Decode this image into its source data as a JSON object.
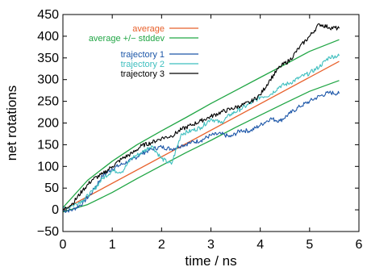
{
  "chart_data": {
    "type": "line",
    "title": "",
    "xlabel": "time / ns",
    "ylabel": "net rotations",
    "xlim": [
      0,
      6
    ],
    "ylim": [
      -50,
      450
    ],
    "x_ticks": [
      0,
      1,
      2,
      3,
      4,
      5,
      6
    ],
    "y_ticks": [
      -50,
      0,
      50,
      100,
      150,
      200,
      250,
      300,
      350,
      400,
      450
    ],
    "grid": false,
    "legend_position": "top-left",
    "series": [
      {
        "name": "average",
        "color": "#e8612c",
        "x": [
          0,
          5.6
        ],
        "y": [
          0,
          342
        ]
      },
      {
        "name": "average +/− stddev",
        "color": "#21a645",
        "x": [
          0,
          0.5,
          1,
          1.5,
          2,
          2.5,
          3,
          3.5,
          4,
          4.5,
          5,
          5.6
        ],
        "y": [
          5,
          68,
          112,
          150,
          182,
          213,
          245,
          275,
          305,
          335,
          365,
          392
        ]
      },
      {
        "name": "",
        "color": "#21a645",
        "x": [
          0,
          0.5,
          1,
          1.5,
          2,
          2.5,
          3,
          3.5,
          4,
          4.5,
          5,
          5.6
        ],
        "y": [
          -5,
          12,
          40,
          72,
          102,
          132,
          160,
          190,
          218,
          246,
          273,
          298
        ]
      },
      {
        "name": "trajectory 1",
        "color": "#1c56a8",
        "x": [
          0,
          0.2,
          0.4,
          0.6,
          0.8,
          1.0,
          1.2,
          1.4,
          1.6,
          1.8,
          2.0,
          2.2,
          2.4,
          2.6,
          2.8,
          3.0,
          3.2,
          3.4,
          3.6,
          3.8,
          4.0,
          4.2,
          4.4,
          4.6,
          4.8,
          5.0,
          5.2,
          5.4,
          5.6
        ],
        "y": [
          -3,
          0,
          15,
          42,
          78,
          95,
          105,
          115,
          130,
          140,
          145,
          140,
          148,
          155,
          160,
          172,
          175,
          168,
          183,
          182,
          195,
          210,
          205,
          222,
          238,
          250,
          262,
          270,
          268
        ]
      },
      {
        "name": "trajectory 2",
        "color": "#3fbfbf",
        "x": [
          0,
          0.2,
          0.4,
          0.6,
          0.8,
          1.0,
          1.2,
          1.4,
          1.6,
          1.8,
          2.0,
          2.2,
          2.4,
          2.6,
          2.8,
          3.0,
          3.2,
          3.4,
          3.6,
          3.8,
          4.0,
          4.2,
          4.4,
          4.6,
          4.8,
          5.0,
          5.2,
          5.4,
          5.6
        ],
        "y": [
          3,
          10,
          22,
          42,
          72,
          90,
          88,
          120,
          132,
          148,
          118,
          105,
          175,
          182,
          190,
          210,
          200,
          220,
          232,
          245,
          260,
          265,
          285,
          292,
          305,
          315,
          330,
          352,
          355
        ]
      },
      {
        "name": "trajectory 3",
        "color": "#000000",
        "x": [
          0,
          0.2,
          0.4,
          0.6,
          0.8,
          1.0,
          1.2,
          1.4,
          1.6,
          1.8,
          2.0,
          2.2,
          2.4,
          2.6,
          2.8,
          3.0,
          3.2,
          3.4,
          3.6,
          3.8,
          4.0,
          4.2,
          4.4,
          4.6,
          4.8,
          5.0,
          5.2,
          5.4,
          5.6
        ],
        "y": [
          0,
          15,
          45,
          70,
          82,
          100,
          118,
          130,
          148,
          155,
          165,
          170,
          185,
          195,
          205,
          215,
          225,
          232,
          240,
          248,
          265,
          300,
          330,
          345,
          375,
          400,
          428,
          420,
          418
        ]
      }
    ]
  }
}
